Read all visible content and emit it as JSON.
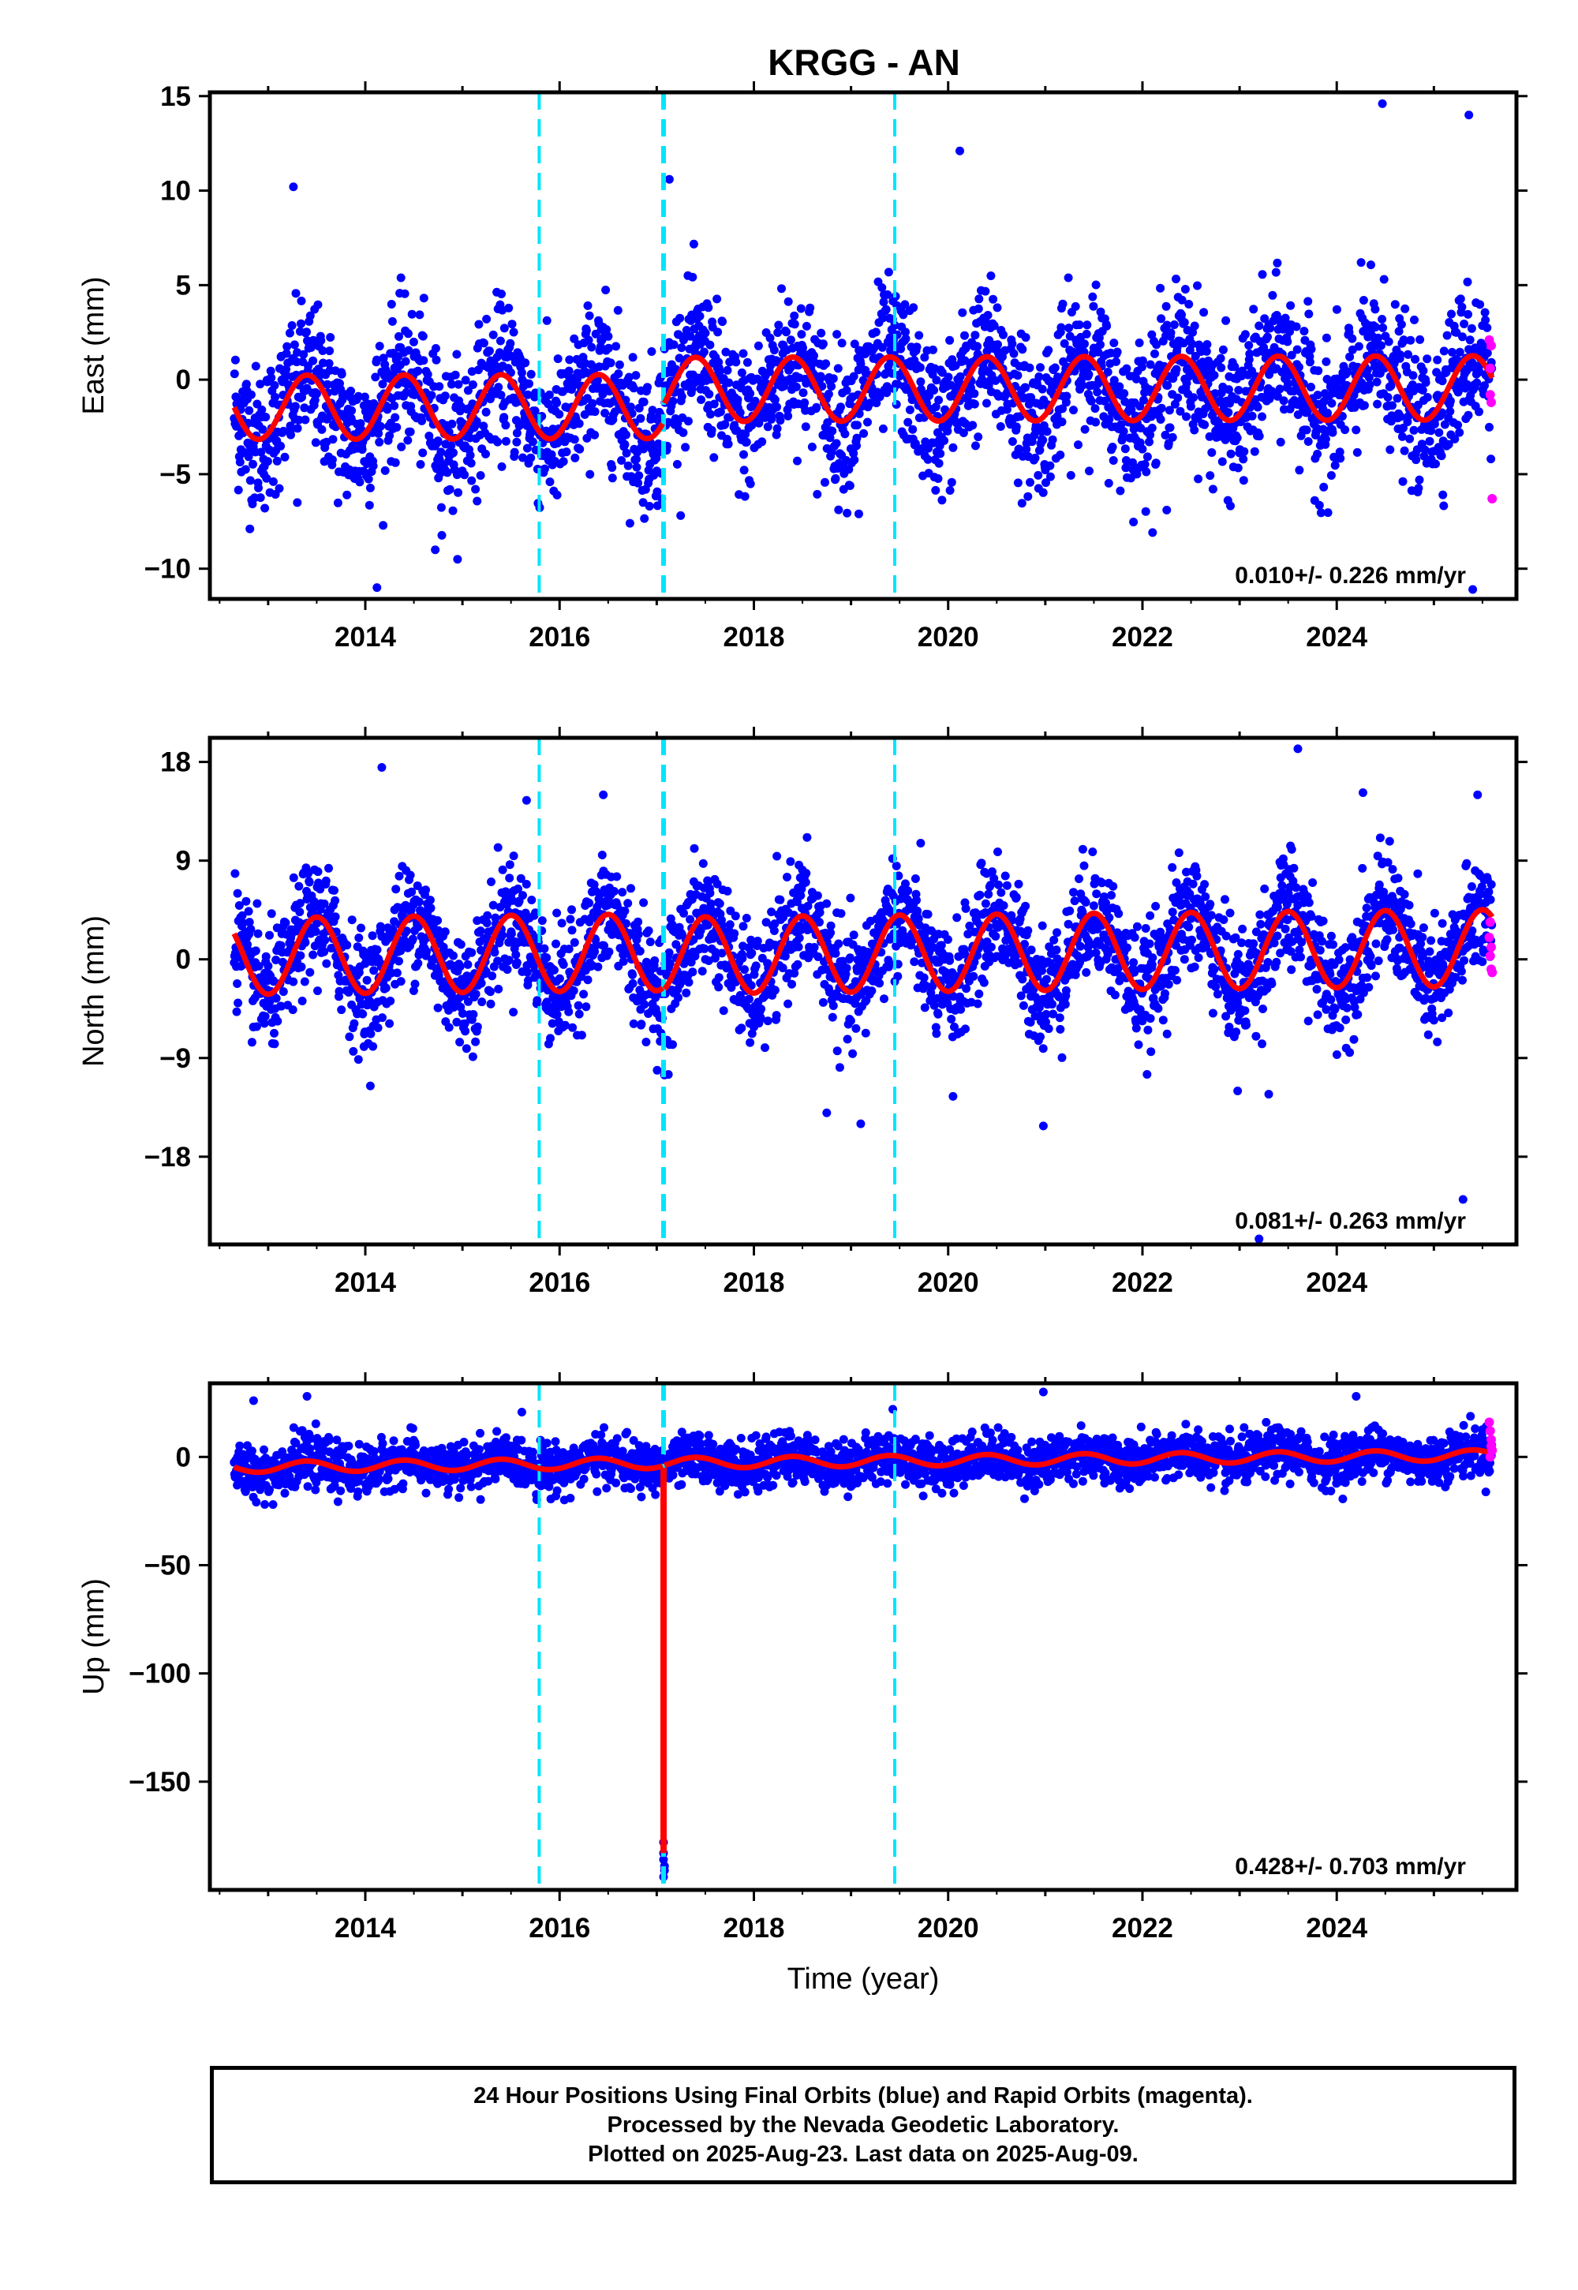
{
  "title": "KRGG - AN",
  "footer": {
    "line1": "24 Hour Positions Using Final Orbits (blue) and Rapid Orbits (magenta).",
    "line2": "Processed by the Nevada Geodetic Laboratory.",
    "line3": "Plotted on 2025-Aug-23. Last data on 2025-Aug-09."
  },
  "colors": {
    "final_points": "#0000ff",
    "rapid_points": "#ff00ff",
    "model_line": "#ff0000",
    "event_lines": "#00e5ff"
  },
  "chart_data": [
    {
      "type": "scatter",
      "panel": "east",
      "ylabel": "East (mm)",
      "xlabel": "",
      "xlim": [
        2012.4,
        2025.85
      ],
      "ylim": [
        -11.6,
        15.2
      ],
      "xticks": [
        2014,
        2016,
        2018,
        2020,
        2022,
        2024
      ],
      "yticks": [
        15,
        10,
        5,
        0,
        -5,
        -10
      ],
      "ytick_labels": [
        "15",
        "10",
        "5",
        "0",
        "−5",
        "−10"
      ],
      "event_lines": [
        2015.79,
        2017.07,
        2019.45
      ],
      "rate_label": "0.010+/- 0.226 mm/yr",
      "model": {
        "offset": -1.0,
        "slope": 0.01,
        "amplitude": 1.7,
        "phase_year": 2013.4,
        "segments": [
          [
            2012.65,
            2017.06
          ],
          [
            2017.08,
            2025.6
          ]
        ],
        "segment_offsets": [
          -0.4,
          0.5
        ]
      },
      "scatter_sigma": 1.9,
      "outliers": [
        [
          2013.26,
          10.2
        ],
        [
          2017.13,
          10.6
        ],
        [
          2020.12,
          12.1
        ],
        [
          2024.47,
          14.6
        ],
        [
          2025.36,
          14.0
        ],
        [
          2014.12,
          -11.0
        ],
        [
          2013.3,
          -6.5
        ],
        [
          2019.08,
          -7.1
        ],
        [
          2022.25,
          -6.9
        ],
        [
          2025.4,
          -11.1
        ],
        [
          2014.72,
          -9.0
        ]
      ],
      "rapid_points": [
        [
          2025.57,
          2.1
        ],
        [
          2025.58,
          0.6
        ],
        [
          2025.59,
          -1.2
        ],
        [
          2025.6,
          -6.3
        ],
        [
          2025.58,
          -0.8
        ],
        [
          2025.59,
          1.8
        ]
      ],
      "grid": false
    },
    {
      "type": "scatter",
      "panel": "north",
      "ylabel": "North (mm)",
      "xlabel": "",
      "xlim": [
        2012.4,
        2025.85
      ],
      "ylim": [
        -26.0,
        20.2
      ],
      "xticks": [
        2014,
        2016,
        2018,
        2020,
        2022,
        2024
      ],
      "yticks": [
        18,
        9,
        0,
        -9,
        -18
      ],
      "ytick_labels": [
        "18",
        "9",
        "0",
        "−9",
        "−18"
      ],
      "event_lines": [
        2015.79,
        2017.07,
        2019.45
      ],
      "rate_label": "0.081+/- 0.263 mm/yr",
      "model": {
        "offset": 0.8,
        "slope": 0.081,
        "amplitude": 3.5,
        "phase_year": 2013.5,
        "segments": [
          [
            2012.65,
            2017.06
          ],
          [
            2017.08,
            2025.6
          ]
        ],
        "segment_offsets": [
          0.0,
          -0.3
        ]
      },
      "scatter_sigma": 2.6,
      "outliers": [
        [
          2014.17,
          17.5
        ],
        [
          2015.66,
          14.5
        ],
        [
          2016.45,
          15.0
        ],
        [
          2023.6,
          19.2
        ],
        [
          2024.27,
          15.2
        ],
        [
          2025.45,
          15.0
        ],
        [
          2018.75,
          -14.0
        ],
        [
          2019.1,
          -15.0
        ],
        [
          2020.05,
          -12.5
        ],
        [
          2020.98,
          -15.2
        ],
        [
          2022.98,
          -12.0
        ],
        [
          2023.3,
          -12.3
        ],
        [
          2025.3,
          -21.9
        ],
        [
          2023.2,
          -25.5
        ],
        [
          2017.12,
          -10.5
        ]
      ],
      "rapid_points": [
        [
          2025.57,
          2.0
        ],
        [
          2025.58,
          0.3
        ],
        [
          2025.59,
          -0.9
        ],
        [
          2025.6,
          -1.2
        ],
        [
          2025.58,
          3.4
        ],
        [
          2025.59,
          1.1
        ]
      ],
      "grid": false
    },
    {
      "type": "scatter",
      "panel": "up",
      "ylabel": "Up (mm)",
      "xlabel": "Time (year)",
      "xlim": [
        2012.4,
        2025.85
      ],
      "ylim": [
        -200.0,
        34.0
      ],
      "xticks": [
        2014,
        2016,
        2018,
        2020,
        2022,
        2024
      ],
      "yticks": [
        0,
        -50,
        -100,
        -150
      ],
      "ytick_labels": [
        "0",
        "−50",
        "−100",
        "−150"
      ],
      "event_lines": [
        2015.79,
        2017.07,
        2019.45
      ],
      "rate_label": "0.428+/- 0.703 mm/yr",
      "model": {
        "offset": -2.0,
        "slope": 0.428,
        "amplitude": 2.5,
        "phase_year": 2013.4,
        "segments": [
          [
            2012.65,
            2017.06
          ],
          [
            2017.08,
            2025.6
          ]
        ],
        "segment_offsets": [
          0.0,
          0.0
        ]
      },
      "scatter_sigma": 5.5,
      "outliers": [
        [
          2012.85,
          26.0
        ],
        [
          2013.4,
          28.0
        ],
        [
          2020.98,
          30.0
        ],
        [
          2024.2,
          28.0
        ],
        [
          2019.43,
          22.0
        ],
        [
          2013.05,
          -22.0
        ],
        [
          2017.07,
          -178.0
        ],
        [
          2017.07,
          -183.0
        ],
        [
          2017.07,
          -186.0
        ],
        [
          2017.08,
          -189.0
        ],
        [
          2017.08,
          -191.0
        ],
        [
          2017.07,
          -194.0
        ]
      ],
      "spike": {
        "x": 2017.07,
        "y_min": -183.0,
        "y_max": -5.0
      },
      "rapid_points": [
        [
          2025.57,
          16.0
        ],
        [
          2025.58,
          12.0
        ],
        [
          2025.59,
          8.0
        ],
        [
          2025.6,
          3.0
        ],
        [
          2025.58,
          0.0
        ],
        [
          2025.59,
          5.0
        ]
      ],
      "grid": false
    }
  ]
}
